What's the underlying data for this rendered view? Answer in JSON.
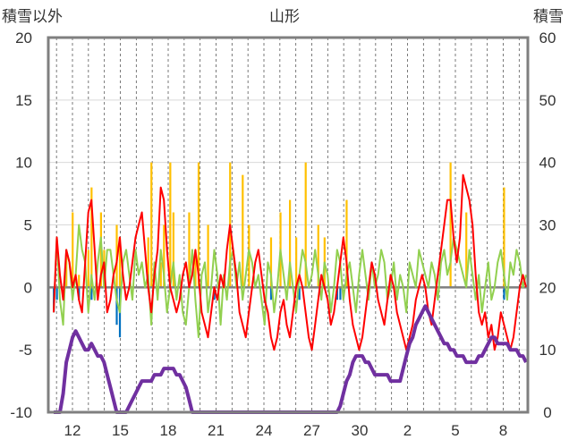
{
  "chart_data": {
    "type": "line",
    "title": "山形",
    "y_left_label": "積雪以外",
    "y_right_label": "積雪",
    "y_left_ticks": [
      "20",
      "15",
      "10",
      "5",
      "0",
      "-5",
      "-10"
    ],
    "y_right_ticks": [
      "60",
      "50",
      "40",
      "30",
      "20",
      "10",
      "0"
    ],
    "ylim_left": [
      -10,
      20
    ],
    "ylim_right": [
      0,
      60
    ],
    "x_tick_labels": [
      "12",
      "15",
      "18",
      "21",
      "24",
      "27",
      "30",
      "2",
      "5",
      "8"
    ],
    "grid": true,
    "colors": {
      "temperature_max": "#ff0000",
      "temperature_min": "#92d050",
      "precipitation": "#ffc000",
      "negative_bars": "#0070c0",
      "snow_depth": "#7030a0",
      "zero_line": "#7f7f7f",
      "frame": "#7f7f7f"
    },
    "series": [
      {
        "key": "temperature_max",
        "axis": "left",
        "values": [
          -2,
          4,
          1,
          -1,
          3,
          2,
          0,
          1,
          -1,
          -2,
          2,
          6,
          7,
          3,
          -1,
          1,
          2,
          -2,
          -1,
          1,
          2,
          4,
          1,
          -1,
          0,
          2,
          4,
          5,
          6,
          3,
          0,
          -2,
          1,
          3,
          8,
          7,
          3,
          0,
          -1,
          -2,
          -1,
          1,
          2,
          0,
          1,
          3,
          1,
          -2,
          -3,
          -4,
          -2,
          0,
          -1,
          1,
          0,
          3,
          5,
          3,
          1,
          -2,
          -3,
          -4,
          -2,
          0,
          2,
          3,
          1,
          -1,
          -2,
          -4,
          -5,
          -4,
          -2,
          -1,
          -3,
          -4,
          -2,
          0,
          1,
          0,
          -2,
          -4,
          -5,
          -3,
          -1,
          1,
          0,
          -1,
          -3,
          -2,
          0,
          2,
          4,
          2,
          -1,
          -3,
          -4,
          -5,
          -4,
          -2,
          0,
          2,
          1,
          -1,
          -2,
          -3,
          -1,
          1,
          0,
          -2,
          -3,
          -4,
          -5,
          -4,
          -3,
          -1,
          0,
          1,
          0,
          -2,
          -3,
          -1,
          1,
          3,
          5,
          7,
          7,
          4,
          2,
          4,
          9,
          8,
          7,
          5,
          1,
          -2,
          -3,
          -2,
          -4,
          -3,
          -5,
          -4,
          -2,
          -3,
          -4,
          -5,
          -4,
          -2,
          0,
          1,
          0
        ]
      },
      {
        "key": "temperature_min",
        "axis": "left",
        "values": [
          -2,
          4,
          -1,
          -3,
          3,
          2,
          -1,
          1,
          5,
          3,
          2,
          -2,
          1,
          -1,
          2,
          4,
          0,
          3,
          3,
          1,
          -1,
          -2,
          2,
          3,
          1,
          -1,
          3,
          1,
          2,
          0,
          1,
          -3,
          2,
          -1,
          3,
          1,
          -2,
          0,
          2,
          -1,
          1,
          -2,
          -3,
          0,
          3,
          -1,
          -4,
          1,
          2,
          -2,
          0,
          3,
          1,
          -3,
          1,
          -1,
          2,
          3,
          0,
          2,
          -1,
          1,
          3,
          2,
          0,
          1,
          -1,
          -3,
          2,
          1,
          -2,
          0,
          3,
          1,
          -1,
          2,
          0,
          -2,
          1,
          3,
          2,
          0,
          1,
          3,
          1,
          -1,
          2,
          1,
          -2,
          0,
          3,
          2,
          -1,
          1,
          2,
          0,
          -2,
          1,
          3,
          1,
          -1,
          2,
          0,
          1,
          3,
          2,
          -1,
          0,
          2,
          -1,
          1,
          0,
          -2,
          2,
          1,
          0,
          3,
          2,
          1,
          0,
          2,
          1,
          -1,
          2,
          3,
          1,
          2,
          4,
          3,
          2,
          1,
          0,
          3,
          1,
          -1,
          1,
          -2,
          0,
          2,
          -1,
          0,
          2,
          3,
          1,
          -1,
          2,
          1,
          3,
          2,
          0,
          1
        ]
      },
      {
        "key": "precipitation",
        "axis": "left",
        "values": [
          0,
          0,
          0,
          0,
          3,
          0,
          6,
          0,
          1,
          0,
          0,
          3,
          8,
          0,
          0,
          6,
          3,
          0,
          0,
          0,
          5,
          4,
          0,
          0,
          0,
          0,
          0,
          0,
          0,
          0,
          4,
          10,
          0,
          0,
          2,
          5,
          0,
          10,
          6,
          0,
          0,
          0,
          0,
          6,
          0,
          3,
          10,
          0,
          0,
          5,
          0,
          0,
          0,
          0,
          0,
          0,
          10,
          0,
          0,
          0,
          9,
          0,
          5,
          0,
          0,
          0,
          0,
          0,
          0,
          4,
          0,
          0,
          6,
          0,
          0,
          7,
          0,
          4,
          0,
          0,
          10,
          0,
          0,
          0,
          5,
          0,
          4,
          0,
          0,
          0,
          0,
          0,
          0,
          7,
          0,
          0,
          0,
          0,
          0,
          0,
          0,
          0,
          0,
          0,
          0,
          0,
          0,
          0,
          0,
          0,
          0,
          0,
          0,
          0,
          0,
          0,
          0,
          0,
          0,
          0,
          0,
          0,
          0,
          0,
          0,
          0,
          10,
          0,
          0,
          0,
          0,
          6,
          0,
          0,
          0,
          0,
          0,
          0,
          0,
          0,
          0,
          0,
          0,
          8,
          0,
          0,
          0,
          0,
          0,
          0,
          0
        ]
      },
      {
        "key": "negative_bars",
        "axis": "left",
        "values": [
          -2,
          -1,
          0,
          0,
          0,
          0,
          0,
          0,
          -1,
          0,
          0,
          0,
          -1,
          0,
          0,
          0,
          0,
          0,
          0,
          0,
          -3,
          -4,
          0,
          0,
          0,
          0,
          0,
          0,
          0,
          0,
          0,
          0,
          0,
          0,
          0,
          0,
          0,
          0,
          0,
          0,
          0,
          0,
          0,
          0,
          0,
          0,
          0,
          0,
          0,
          0,
          0,
          -1,
          0,
          0,
          0,
          0,
          0,
          0,
          0,
          0,
          0,
          0,
          0,
          0,
          0,
          0,
          0,
          0,
          0,
          -1,
          0,
          0,
          0,
          0,
          0,
          0,
          0,
          0,
          -1,
          0,
          0,
          0,
          0,
          0,
          0,
          0,
          0,
          0,
          0,
          0,
          -1,
          -1,
          0,
          0,
          0,
          0,
          0,
          0,
          0,
          0,
          0,
          0,
          0,
          0,
          0,
          0,
          0,
          0,
          0,
          0,
          0,
          0,
          0,
          0,
          0,
          0,
          0,
          0,
          0,
          0,
          0,
          0,
          0,
          0,
          0,
          0,
          0,
          0,
          0,
          0,
          0,
          0,
          0,
          0,
          0,
          0,
          0,
          0,
          0,
          0,
          0,
          0,
          0,
          -1,
          0,
          0,
          0,
          0,
          0,
          0,
          0
        ]
      },
      {
        "key": "snow_depth",
        "axis": "right",
        "values": [
          0,
          0,
          0,
          3,
          8,
          10,
          12,
          13,
          12,
          11,
          10,
          10,
          11,
          10,
          9,
          9,
          8,
          6,
          4,
          2,
          0,
          0,
          0,
          0,
          1,
          2,
          3,
          4,
          5,
          5,
          5,
          5,
          6,
          6,
          6,
          7,
          7,
          7,
          7,
          6,
          6,
          5,
          4,
          2,
          0,
          0,
          0,
          0,
          0,
          0,
          0,
          0,
          0,
          0,
          0,
          0,
          0,
          0,
          0,
          0,
          0,
          0,
          0,
          0,
          0,
          0,
          0,
          0,
          0,
          0,
          0,
          0,
          0,
          0,
          0,
          0,
          0,
          0,
          0,
          0,
          0,
          0,
          0,
          0,
          0,
          0,
          0,
          0,
          0,
          0,
          0,
          1,
          3,
          5,
          6,
          8,
          9,
          9,
          9,
          8,
          8,
          7,
          6,
          6,
          6,
          6,
          6,
          5,
          5,
          5,
          5,
          7,
          9,
          11,
          12,
          14,
          15,
          16,
          17,
          16,
          15,
          14,
          13,
          12,
          11,
          11,
          10,
          10,
          9,
          9,
          9,
          8,
          8,
          8,
          8,
          9,
          9,
          10,
          11,
          12,
          12,
          11,
          11,
          11,
          11,
          10,
          10,
          10,
          9,
          9,
          8
        ]
      }
    ]
  }
}
